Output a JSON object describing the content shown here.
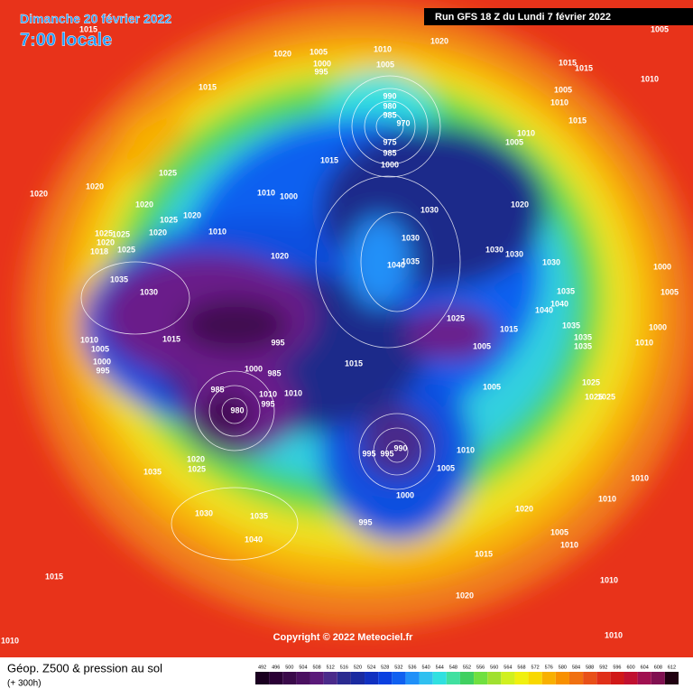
{
  "header": {
    "date": "Dimanche 20 février 2022",
    "time": "7:00 locale",
    "run": "Run GFS 18 Z du Lundi 7 février 2022"
  },
  "copyright": "Copyright © 2022 Meteociel.fr",
  "footer": {
    "title": "Géop. Z500 & pression au sol",
    "lead": "(+ 300h)"
  },
  "isobar_labels": [
    1015,
    1020,
    1005,
    1000,
    995,
    1010,
    1005,
    1020,
    1015,
    990,
    980,
    985,
    970,
    975,
    985,
    1000,
    1015,
    1025,
    1020,
    1020,
    1020,
    1025,
    1020,
    1020,
    1025,
    1025,
    1020,
    1018,
    1025,
    1010,
    1010,
    1000,
    1020,
    1030,
    1030,
    1040,
    1035,
    1030,
    1030,
    1030,
    1020,
    1015,
    1015,
    1005,
    1010,
    1015,
    1010,
    1005,
    1010,
    1005,
    1035,
    1030,
    1015,
    1010,
    1005,
    1000,
    995,
    995,
    1000,
    985,
    985,
    1010,
    1010,
    980,
    995,
    1015,
    1025,
    1015,
    1005,
    1005,
    1035,
    1040,
    1040,
    1035,
    1035,
    1035,
    1010,
    1000,
    1000,
    1005,
    1025,
    1025,
    1025,
    995,
    995,
    990,
    1005,
    1010,
    1000,
    995,
    1020,
    1005,
    1010,
    1010,
    1010,
    1015,
    1020,
    1035,
    1020,
    1025,
    1030,
    1035,
    1040,
    1015,
    1010,
    1010,
    1010
  ],
  "colorbar": {
    "ticks": [
      492,
      496,
      500,
      504,
      508,
      512,
      516,
      520,
      524,
      528,
      532,
      536,
      540,
      544,
      548,
      552,
      556,
      560,
      564,
      568,
      572,
      576,
      580,
      584,
      588,
      592,
      596,
      600,
      604,
      608,
      612
    ],
    "colors": [
      "#1a0020",
      "#2a0035",
      "#3a0a4a",
      "#4a1060",
      "#5a1a7a",
      "#4a2a8a",
      "#2a2a90",
      "#1a2aa0",
      "#1030c0",
      "#0a40e0",
      "#1060f0",
      "#2090f8",
      "#30c0f0",
      "#30e0e0",
      "#40e0a0",
      "#40d060",
      "#70e040",
      "#a0e030",
      "#d0f020",
      "#f0f010",
      "#f8d800",
      "#f8b000",
      "#f89000",
      "#f07010",
      "#e85018",
      "#e03018",
      "#d01818",
      "#c01030",
      "#a01050",
      "#801050",
      "#200010"
    ]
  }
}
